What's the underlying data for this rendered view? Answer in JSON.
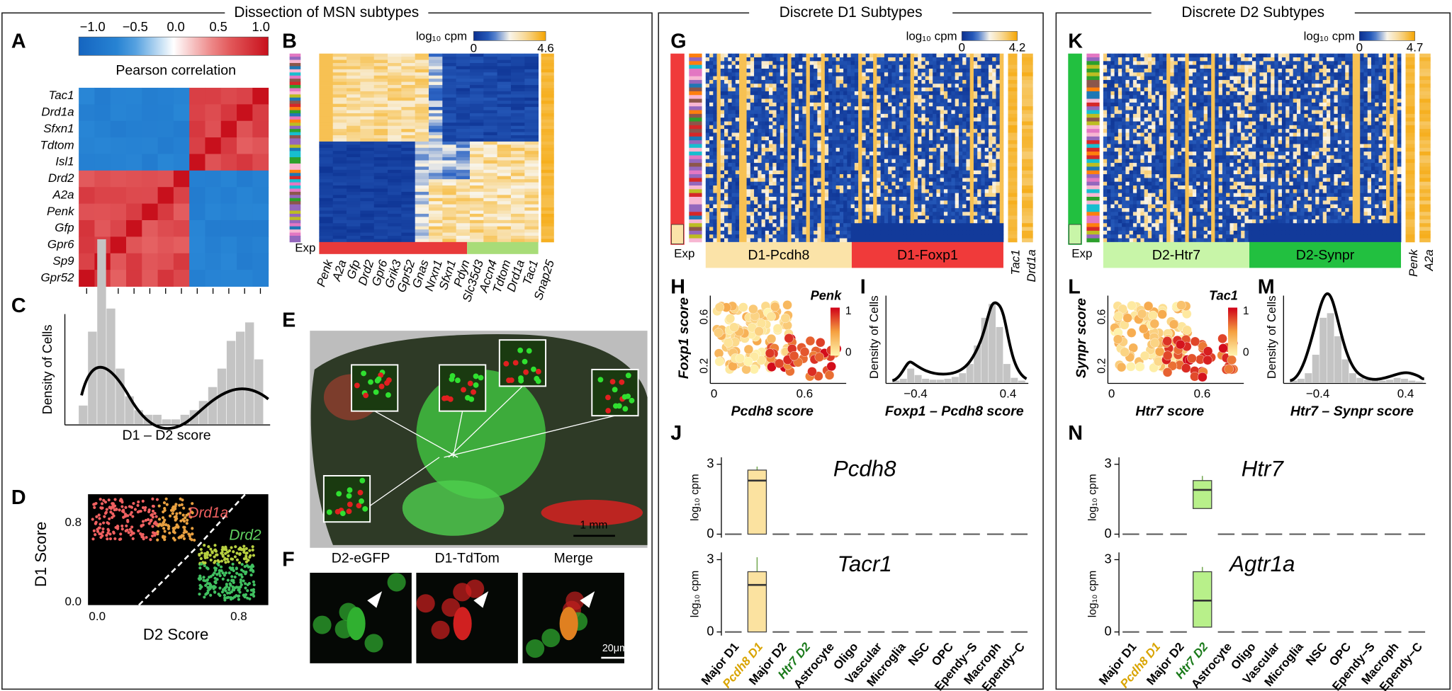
{
  "sections": [
    "Dissection of MSN subtypes",
    "Discrete D1 Subtypes",
    "Discrete D2 Subtypes"
  ],
  "A": {
    "label": "A",
    "colorbar_ticks": [
      "−1.0",
      "−0.5",
      "0.0",
      "0.5",
      "1.0"
    ],
    "colorbar_title": "Pearson correlation",
    "genes": [
      "Tac1",
      "Drd1a",
      "Sfxn1",
      "Tdtom",
      "Isl1",
      "Drd2",
      "A2a",
      "Penk",
      "Gfp",
      "Gpr6",
      "Sp9",
      "Gpr52"
    ]
  },
  "B": {
    "label": "B",
    "scale_title": "log₁₀ cpm",
    "scale_ticks": [
      "0",
      "4.6"
    ],
    "exp_label": "Exp",
    "genes": [
      "Penk",
      "A2a",
      "Gfp",
      "Drd2",
      "Gpr6",
      "Grik3",
      "Gpr52",
      "Gnas",
      "Nrxn1",
      "Sfxn1",
      "Pdyn",
      "Slc35d3",
      "Accn4",
      "Tdtom",
      "Drd1a",
      "Tac1"
    ],
    "extra_gene": "Snap25"
  },
  "C": {
    "label": "C",
    "ylabel": "Density of Cells",
    "xlabel": "D1 – D2 score"
  },
  "D": {
    "label": "D",
    "ylabel": "D1 Score",
    "xlabel": "D2 Score",
    "yticks": [
      "0.8",
      "0.0"
    ],
    "xticks": [
      "0.0",
      "0.8"
    ],
    "groups": [
      "Drd1a",
      "Drd2"
    ]
  },
  "E": {
    "label": "E",
    "scale_bar": "1 mm"
  },
  "F": {
    "label": "F",
    "channels": [
      "D2-eGFP",
      "D1-TdTom",
      "Merge"
    ],
    "scale_bar": "20μm"
  },
  "G": {
    "label": "G",
    "scale_title": "log₁₀ cpm",
    "scale_ticks": [
      "0",
      "4.2"
    ],
    "exp_label": "Exp",
    "clusters": [
      "D1-Pcdh8",
      "D1-Foxp1"
    ],
    "marker_genes": [
      "Tac1",
      "Drd1a"
    ]
  },
  "H": {
    "label": "H",
    "ylabel": "Foxp1 score",
    "xlabel": "Pcdh8 score",
    "yticks": [
      "0.6",
      "0.2"
    ],
    "xticks": [
      "0",
      "0.6"
    ],
    "color_title": "Penk",
    "color_ticks": [
      "1",
      "0"
    ]
  },
  "I": {
    "label": "I",
    "ylabel": "Density of Cells",
    "xlabel": "Foxp1 – Pcdh8 score",
    "xticks": [
      "−0.4",
      "0.4"
    ]
  },
  "J": {
    "label": "J",
    "ylabel": "log₁₀ cpm",
    "yticks": [
      0,
      3
    ],
    "ylim": [
      -0.15,
      3.3
    ],
    "categories": [
      "Major D1",
      "Pcdh8 D1",
      "Major D2",
      "Htr7 D2",
      "Astrocyte",
      "Oligo",
      "Vascular",
      "Microglia",
      "NSC",
      "OPC",
      "Ependy−S",
      "Macroph",
      "Ependy−C"
    ],
    "category_colors": [
      "#000000",
      "#d9a400",
      "#000000",
      "#1a7a1a",
      "#000000",
      "#000000",
      "#000000",
      "#000000",
      "#000000",
      "#000000",
      "#000000",
      "#000000",
      "#000000"
    ],
    "box_color": "#fbe2a0",
    "box_index": 1,
    "plots": [
      {
        "gene": "Pcdh8",
        "others_median": 0,
        "box": {
          "min": 0,
          "q1": 0,
          "median": 2.3,
          "q3": 2.75,
          "max": 2.9
        }
      },
      {
        "gene": "Tacr1",
        "others_median": 0,
        "box": {
          "min": 0,
          "q1": 0,
          "median": 1.95,
          "q3": 2.5,
          "max": 3.1
        }
      }
    ]
  },
  "K": {
    "label": "K",
    "scale_title": "log₁₀ cpm",
    "scale_ticks": [
      "0",
      "4.7"
    ],
    "exp_label": "Exp",
    "clusters": [
      "D2-Htr7",
      "D2-Synpr"
    ],
    "marker_genes": [
      "Penk",
      "A2a"
    ]
  },
  "L": {
    "label": "L",
    "ylabel": "Synpr score",
    "xlabel": "Htr7 score",
    "yticks": [
      "0.6",
      "0.2"
    ],
    "xticks": [
      "0",
      "0.6"
    ],
    "color_title": "Tac1",
    "color_ticks": [
      "1",
      "0"
    ]
  },
  "M": {
    "label": "M",
    "ylabel": "Density of Cells",
    "xlabel": "Htr7 – Synpr score",
    "xticks": [
      "−0.4",
      "0.4"
    ]
  },
  "N": {
    "label": "N",
    "ylabel": "log₁₀ cpm",
    "yticks": [
      0,
      3
    ],
    "ylim": [
      -0.15,
      3.3
    ],
    "categories": [
      "Major D1",
      "Pcdh8 D1",
      "Major D2",
      "Htr7 D2",
      "Astrocyte",
      "Oligo",
      "Vascular",
      "Microglia",
      "NSC",
      "OPC",
      "Ependy−S",
      "Macroph",
      "Ependy−C"
    ],
    "category_colors": [
      "#000000",
      "#d9a400",
      "#000000",
      "#1a7a1a",
      "#000000",
      "#000000",
      "#000000",
      "#000000",
      "#000000",
      "#000000",
      "#000000",
      "#000000",
      "#000000"
    ],
    "box_color": "#b8f08a",
    "box_index": 3,
    "plots": [
      {
        "gene": "Htr7",
        "others_median": 0,
        "box": {
          "min": 1.1,
          "q1": 1.1,
          "median": 1.9,
          "q3": 2.3,
          "max": 2.5
        }
      },
      {
        "gene": "Agtr1a",
        "others_median": 0,
        "box": {
          "min": 0.2,
          "q1": 0.2,
          "median": 1.3,
          "q3": 2.5,
          "max": 2.7
        }
      }
    ]
  }
}
